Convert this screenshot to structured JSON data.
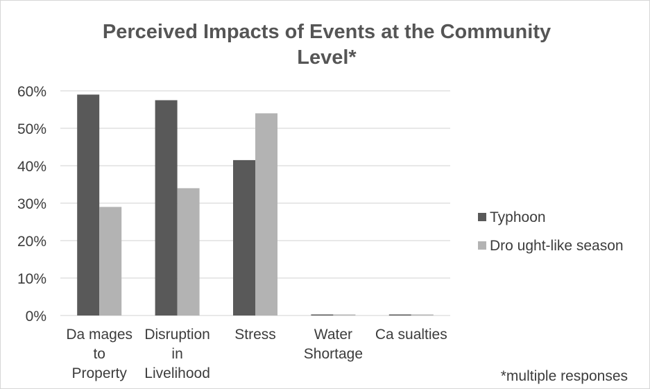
{
  "chart_data": {
    "type": "bar",
    "title_lines": [
      "Perceived Impacts of Events at the Community",
      "Level*"
    ],
    "categories": [
      [
        "Da mages",
        "to",
        "Property"
      ],
      [
        "Disruption",
        "in",
        "Livelihood"
      ],
      [
        "Stress"
      ],
      [
        "Water",
        "Shortage"
      ],
      [
        "Ca sualties"
      ]
    ],
    "series": [
      {
        "name": "Typhoon",
        "color": "#595959",
        "values": [
          0.59,
          0.575,
          0.415,
          0.0,
          0.0
        ]
      },
      {
        "name": "Dro ught-like season",
        "color": "#b3b3b3",
        "values": [
          0.29,
          0.34,
          0.54,
          0.0,
          0.0
        ]
      }
    ],
    "ylim": [
      0,
      0.6
    ],
    "y_ticks": [
      "0%",
      "10%",
      "20%",
      "30%",
      "40%",
      "50%",
      "60%"
    ],
    "grid": true,
    "legend_position": "right",
    "footnote": "*multiple responses"
  }
}
